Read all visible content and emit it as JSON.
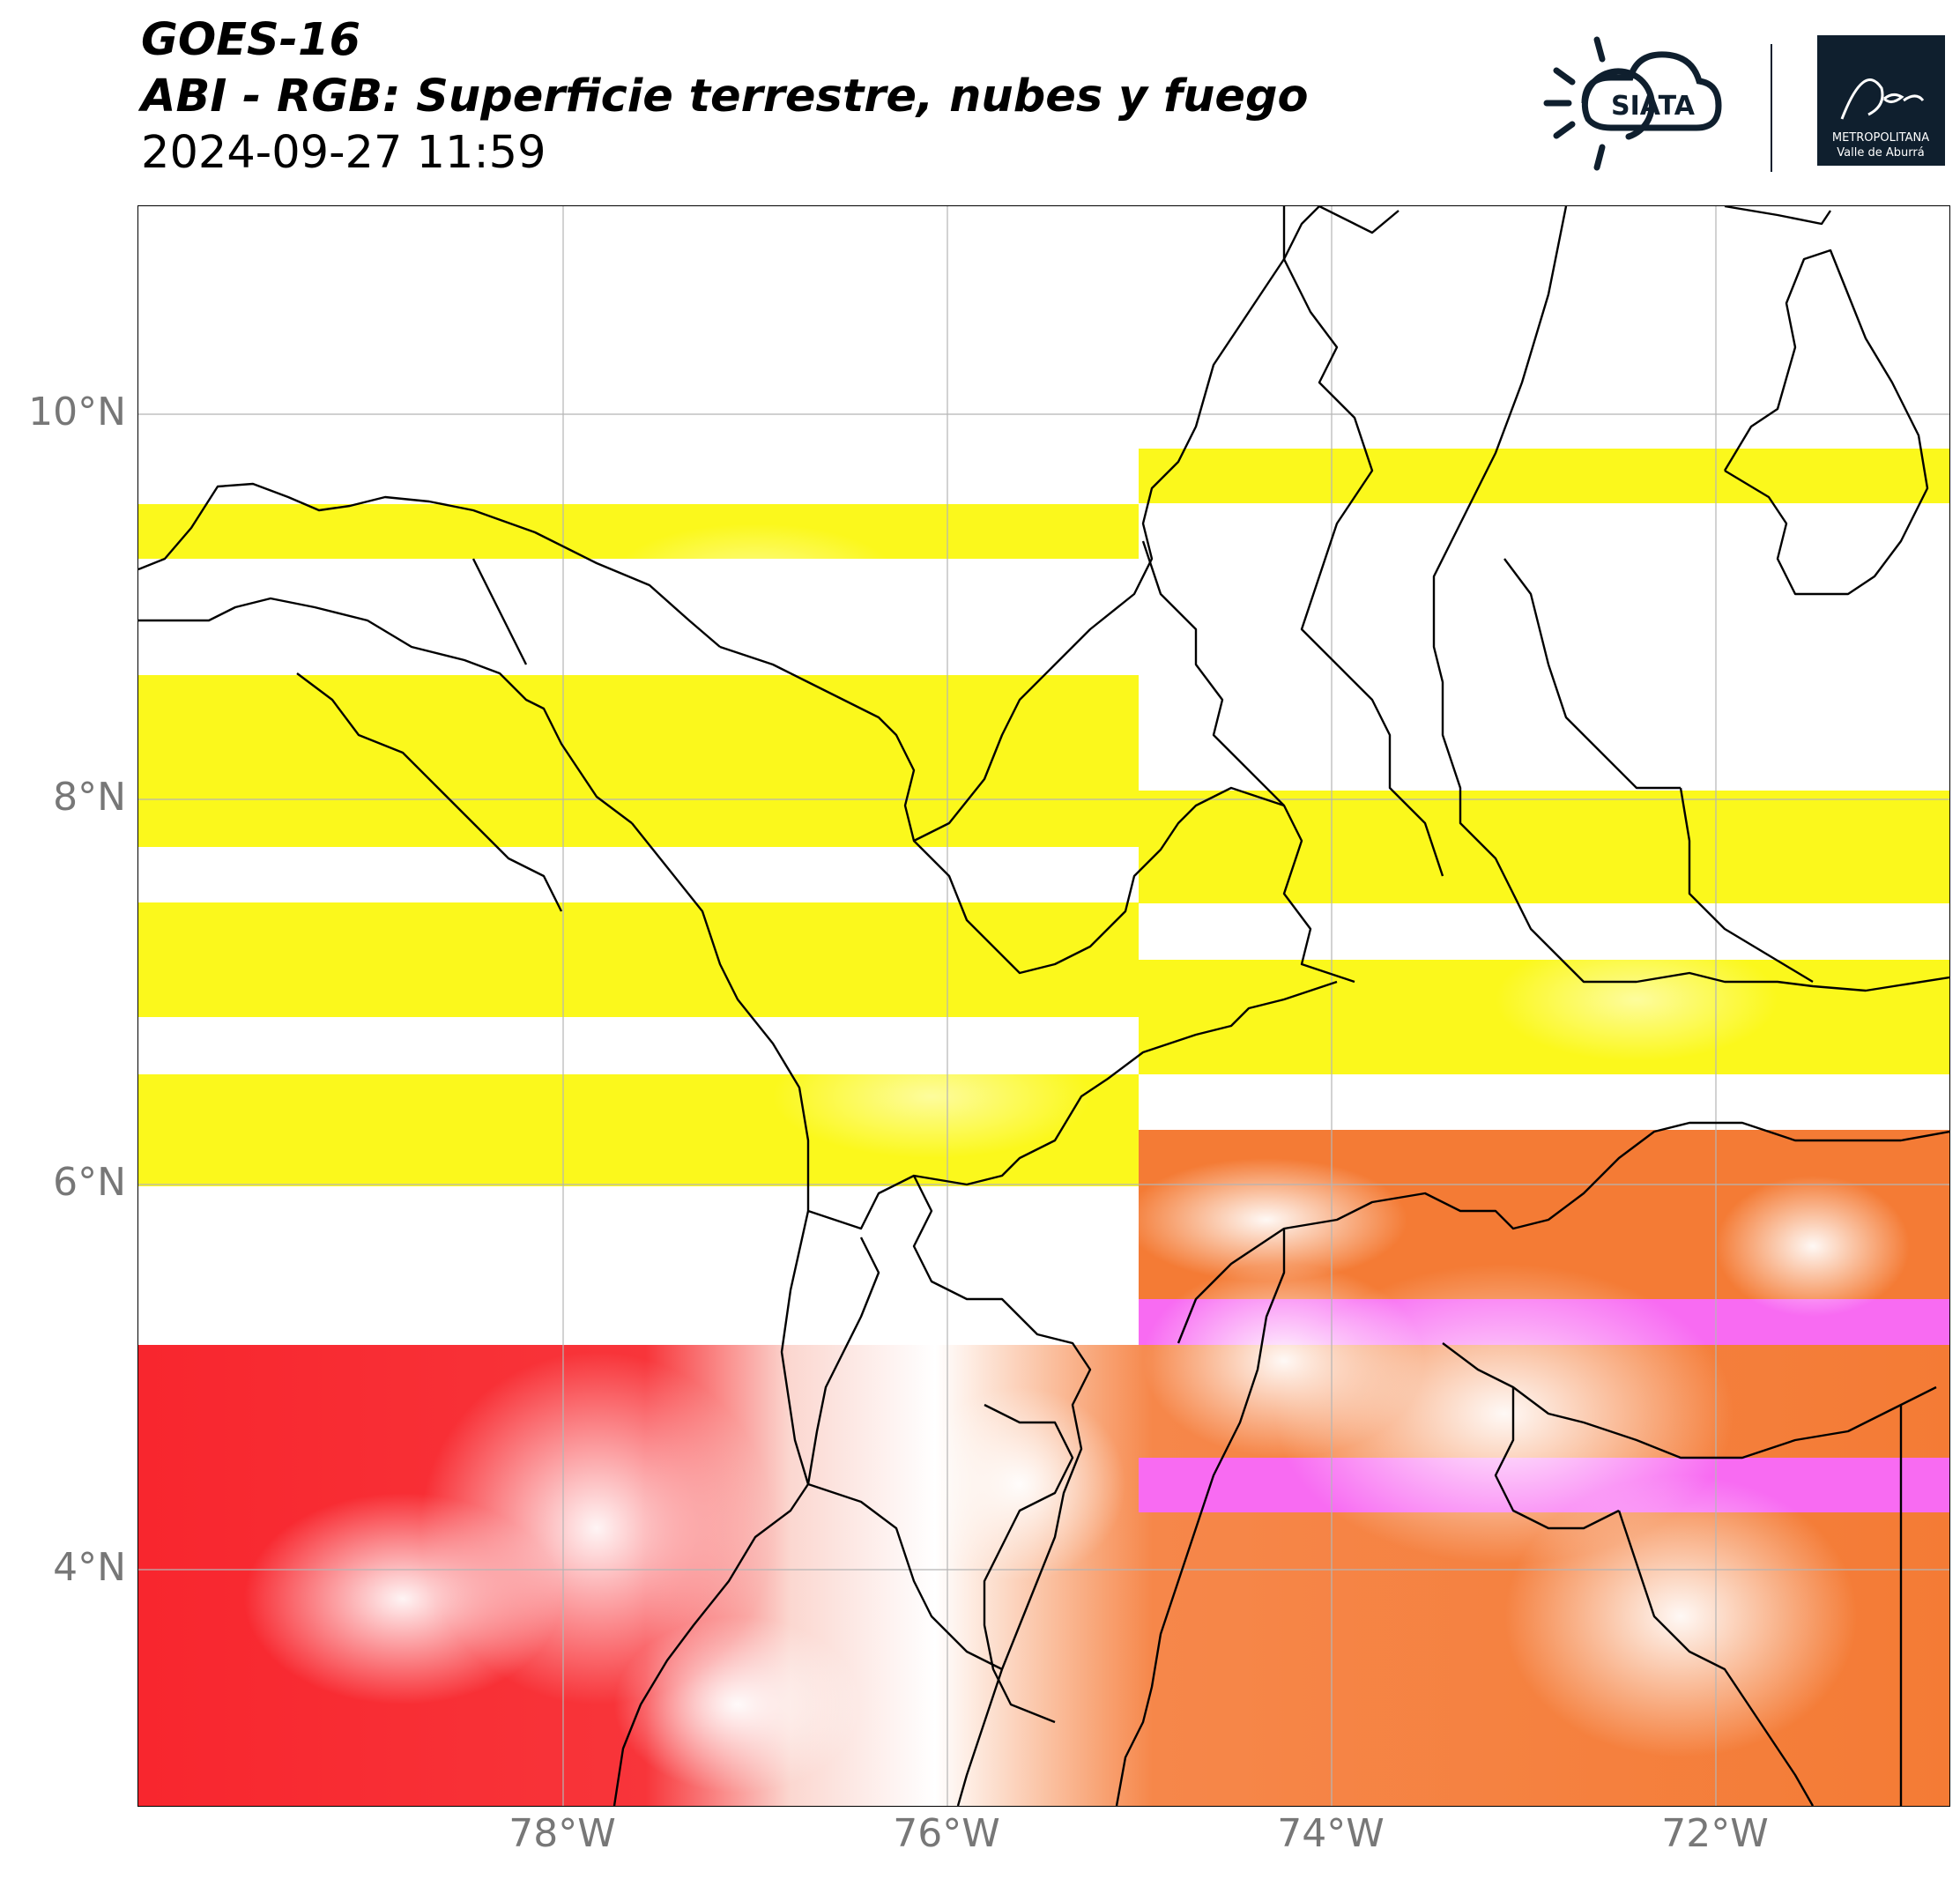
{
  "header": {
    "satellite": "GOES-16",
    "product": "ABI - RGB: Superficie terrestre, nubes y fuego",
    "datetime": "2024-09-27 11:59"
  },
  "logos": {
    "siata_text": "SIATA",
    "amva_line1": "METROPOLITANA",
    "amva_line2": "Valle de Aburrá"
  },
  "map": {
    "lon_range": [
      -80.2,
      -71.1
    ],
    "lat_range": [
      2.6,
      10.9
    ],
    "lat_ticks": [
      {
        "value": 10,
        "label": "10°N"
      },
      {
        "value": 8,
        "label": "8°N"
      },
      {
        "value": 6,
        "label": "6°N"
      },
      {
        "value": 4,
        "label": "4°N"
      }
    ],
    "lon_ticks": [
      {
        "value": -78,
        "label": "78°W"
      },
      {
        "value": -76,
        "label": "76°W"
      },
      {
        "value": -74,
        "label": "74°W"
      },
      {
        "value": -72,
        "label": "72°W"
      }
    ],
    "gridlines": true,
    "colors": {
      "yellow_band": "#fbf81c",
      "orange_land": "#f47b35",
      "red_ocean": "#f8262e",
      "magenta_band": "#f86bf2",
      "boundary": "#000000"
    }
  }
}
